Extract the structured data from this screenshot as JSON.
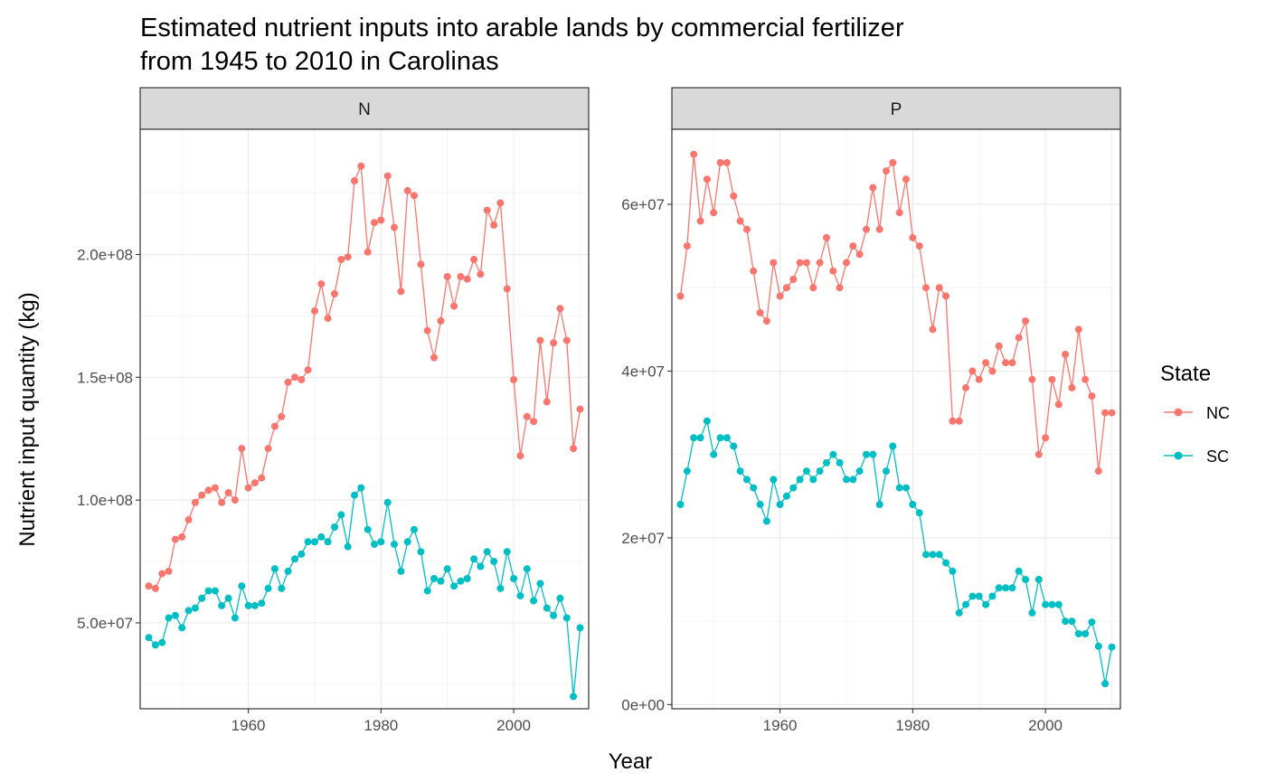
{
  "chart_data": {
    "type": "line",
    "title": "Estimated nutrient inputs into arable lands by commercial fertilizer",
    "title_line2": "from 1945 to 2010 in Carolinas",
    "xlabel": "Year",
    "ylabel": "Nutrient input quantity (kg)",
    "xlim": [
      1943.7,
      2011.3
    ],
    "x_ticks": [
      1960,
      1980,
      2000
    ],
    "x_tick_labels": [
      "1960",
      "1980",
      "2000"
    ],
    "legend": {
      "title": "State",
      "placement": "right",
      "entries": [
        {
          "label": "NC",
          "color": "#F8766D"
        },
        {
          "label": "SC",
          "color": "#00BFC4"
        }
      ]
    },
    "grid": true,
    "x": [
      1945,
      1946,
      1947,
      1948,
      1949,
      1950,
      1951,
      1952,
      1953,
      1954,
      1955,
      1956,
      1957,
      1958,
      1959,
      1960,
      1961,
      1962,
      1963,
      1964,
      1965,
      1966,
      1967,
      1968,
      1969,
      1970,
      1971,
      1972,
      1973,
      1974,
      1975,
      1976,
      1977,
      1978,
      1979,
      1980,
      1981,
      1982,
      1983,
      1984,
      1985,
      1986,
      1987,
      1988,
      1989,
      1990,
      1991,
      1992,
      1993,
      1994,
      1995,
      1996,
      1997,
      1998,
      1999,
      2000,
      2001,
      2002,
      2003,
      2004,
      2005,
      2006,
      2007,
      2008,
      2009,
      2010
    ],
    "facets": [
      {
        "strip": "N",
        "ylim": [
          15000000.0,
          251000000.0
        ],
        "y_ticks": [
          50000000.0,
          100000000.0,
          150000000.0,
          200000000.0
        ],
        "y_tick_labels": [
          "5.0e+07",
          "1.0e+08",
          "1.5e+08",
          "2.0e+08"
        ],
        "series": [
          {
            "name": "NC",
            "values": [
              65000000.0,
              64000000.0,
              70000000.0,
              71000000.0,
              84000000.0,
              85000000.0,
              92000000.0,
              99000000.0,
              102000000.0,
              104000000.0,
              105000000.0,
              99000000.0,
              103000000.0,
              100000000.0,
              121000000.0,
              105000000.0,
              107000000.0,
              109000000.0,
              121000000.0,
              130000000.0,
              134000000.0,
              148000000.0,
              150000000.0,
              149000000.0,
              153000000.0,
              177000000.0,
              188000000.0,
              174000000.0,
              184000000.0,
              198000000.0,
              199000000.0,
              230000000.0,
              236000000.0,
              201000000.0,
              213000000.0,
              214000000.0,
              232000000.0,
              211000000.0,
              185000000.0,
              226000000.0,
              224000000.0,
              196000000.0,
              169000000.0,
              158000000.0,
              173000000.0,
              191000000.0,
              179000000.0,
              191000000.0,
              190000000.0,
              198000000.0,
              192000000.0,
              218000000.0,
              212000000.0,
              221000000.0,
              186000000.0,
              149000000.0,
              118000000.0,
              134000000.0,
              132000000.0,
              165000000.0,
              140000000.0,
              164000000.0,
              178000000.0,
              165000000.0,
              121000000.0,
              137000000.0
            ]
          },
          {
            "name": "SC",
            "values": [
              44000000.0,
              41000000.0,
              42000000.0,
              52000000.0,
              53000000.0,
              48000000.0,
              55000000.0,
              56000000.0,
              60000000.0,
              63000000.0,
              63000000.0,
              57000000.0,
              60000000.0,
              52000000.0,
              65000000.0,
              57000000.0,
              57000000.0,
              58000000.0,
              64000000.0,
              72000000.0,
              64000000.0,
              71000000.0,
              76000000.0,
              78000000.0,
              83000000.0,
              83000000.0,
              85000000.0,
              83000000.0,
              89000000.0,
              94000000.0,
              81000000.0,
              102000000.0,
              105000000.0,
              88000000.0,
              82000000.0,
              83000000.0,
              99000000.0,
              82000000.0,
              71000000.0,
              83000000.0,
              88000000.0,
              79000000.0,
              63000000.0,
              68000000.0,
              67000000.0,
              72000000.0,
              65000000.0,
              67000000.0,
              68000000.0,
              76000000.0,
              73000000.0,
              79000000.0,
              75000000.0,
              64000000.0,
              79000000.0,
              68000000.0,
              61000000.0,
              72000000.0,
              59000000.0,
              66000000.0,
              56000000.0,
              53000000.0,
              60000000.0,
              52000000.0,
              20000000.0,
              48000000.0
            ]
          }
        ]
      },
      {
        "strip": "P",
        "ylim": [
          -500000.0,
          69000000.0
        ],
        "y_ticks": [
          0,
          20000000.0,
          40000000.0,
          60000000.0
        ],
        "y_tick_labels": [
          "0e+00",
          "2e+07",
          "4e+07",
          "6e+07"
        ],
        "series": [
          {
            "name": "NC",
            "values": [
              49000000.0,
              55000000.0,
              66000000.0,
              58000000.0,
              63000000.0,
              59000000.0,
              65000000.0,
              65000000.0,
              61000000.0,
              58000000.0,
              57000000.0,
              52000000.0,
              47000000.0,
              46000000.0,
              53000000.0,
              49000000.0,
              50000000.0,
              51000000.0,
              53000000.0,
              53000000.0,
              50000000.0,
              53000000.0,
              56000000.0,
              52000000.0,
              50000000.0,
              53000000.0,
              55000000.0,
              54000000.0,
              57000000.0,
              62000000.0,
              57000000.0,
              64000000.0,
              65000000.0,
              59000000.0,
              63000000.0,
              56000000.0,
              55000000.0,
              50000000.0,
              45000000.0,
              50000000.0,
              49000000.0,
              34000000.0,
              34000000.0,
              38000000.0,
              40000000.0,
              39000000.0,
              41000000.0,
              40000000.0,
              43000000.0,
              41000000.0,
              41000000.0,
              44000000.0,
              46000000.0,
              39000000.0,
              30000000.0,
              32000000.0,
              39000000.0,
              36000000.0,
              42000000.0,
              38000000.0,
              45000000.0,
              39000000.0,
              37000000.0,
              28000000.0,
              35000000.0,
              35000000.0
            ]
          },
          {
            "name": "SC",
            "values": [
              24000000.0,
              28000000.0,
              32000000.0,
              32000000.0,
              34000000.0,
              30000000.0,
              32000000.0,
              32000000.0,
              31000000.0,
              28000000.0,
              27000000.0,
              26000000.0,
              24000000.0,
              22000000.0,
              27000000.0,
              24000000.0,
              25000000.0,
              26000000.0,
              27000000.0,
              28000000.0,
              27000000.0,
              28000000.0,
              29000000.0,
              30000000.0,
              29000000.0,
              27000000.0,
              27000000.0,
              28000000.0,
              30000000.0,
              30000000.0,
              24000000.0,
              28000000.0,
              31000000.0,
              26000000.0,
              26000000.0,
              24000000.0,
              23000000.0,
              18000000.0,
              18000000.0,
              18000000.0,
              17000000.0,
              16000000.0,
              11000000.0,
              12000000.0,
              13000000.0,
              13000000.0,
              12000000.0,
              13000000.0,
              14000000.0,
              14000000.0,
              14000000.0,
              16000000.0,
              15000000.0,
              11000000.0,
              15000000.0,
              12000000.0,
              12000000.0,
              12000000.0,
              10000000.0,
              10000000.0,
              8500000.0,
              8500000.0,
              9900000.0,
              7000000.0,
              2500000.0,
              6900000.0
            ]
          }
        ]
      }
    ]
  }
}
